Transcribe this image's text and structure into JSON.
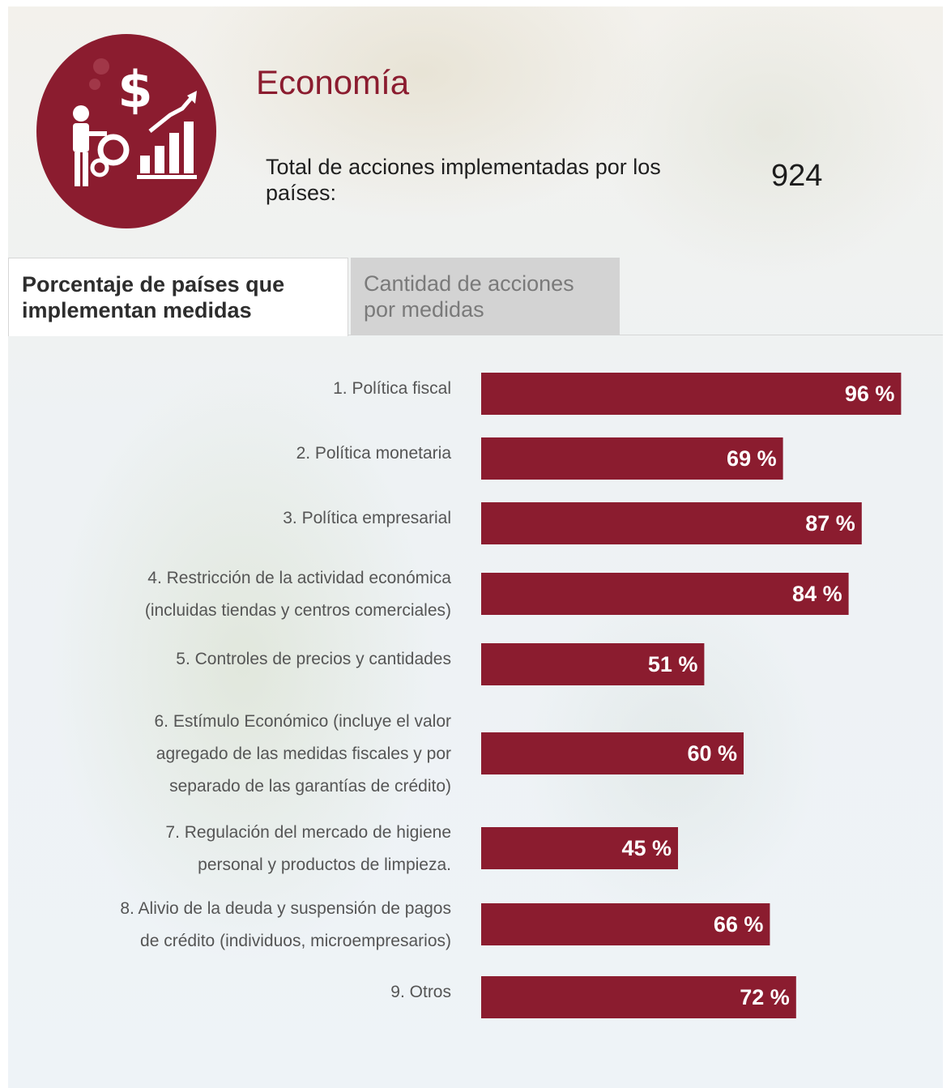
{
  "header": {
    "title": "Economía",
    "total_label": "Total de acciones implementadas por los países:",
    "total_value": "924"
  },
  "tabs": [
    {
      "label": "Porcentaje de países que implementan medidas",
      "active": true
    },
    {
      "label": "Cantidad de acciones por medidas",
      "active": false
    }
  ],
  "colors": {
    "accent": "#8b1c2f",
    "inactive_tab": "#d3d3d3"
  },
  "icons": {
    "logo": "economy-icon"
  },
  "chart_data": {
    "type": "bar",
    "orientation": "horizontal",
    "xlim": [
      0,
      100
    ],
    "categories": [
      [
        "1. Política fiscal"
      ],
      [
        "2. Política monetaria"
      ],
      [
        "3. Política empresarial"
      ],
      [
        "4. Restricción de la actividad económica",
        "(incluidas tiendas y centros comerciales)"
      ],
      [
        "5. Controles de precios y cantidades"
      ],
      [
        "6. Estímulo Económico (incluye el valor",
        "agregado de las medidas fiscales y por",
        "separado de las garantías de crédito)"
      ],
      [
        "7. Regulación del mercado de higiene",
        "personal y productos de limpieza."
      ],
      [
        "8. Alivio de la deuda y suspensión de pagos",
        "de crédito (individuos, microempresarios)"
      ],
      [
        "9. Otros"
      ]
    ],
    "values": [
      96,
      69,
      87,
      84,
      51,
      60,
      45,
      66,
      72
    ],
    "value_suffix": " %",
    "grid": false,
    "legend": "none"
  }
}
